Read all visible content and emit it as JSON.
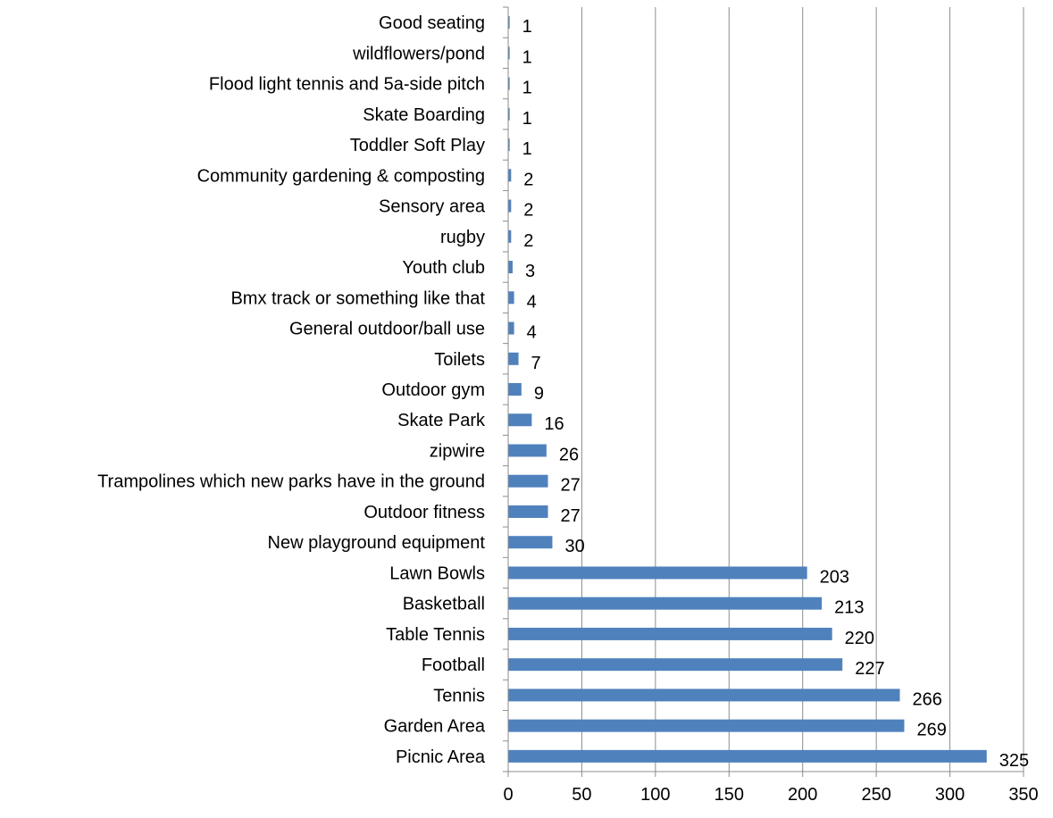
{
  "chart_data": {
    "type": "bar",
    "orientation": "horizontal",
    "title": "",
    "xlabel": "",
    "ylabel": "",
    "xlim": [
      0,
      350
    ],
    "xticks": [
      0,
      50,
      100,
      150,
      200,
      250,
      300,
      350
    ],
    "grid": "vertical",
    "legend": "none",
    "bar_color": "#4f81bd",
    "categories": [
      "Good seating",
      "wildflowers/pond",
      "Flood light tennis and 5a-side pitch",
      "Skate Boarding",
      "Toddler Soft Play",
      "Community gardening & composting",
      "Sensory area",
      "rugby",
      "Youth club",
      "Bmx track or something like that",
      "General outdoor/ball use",
      "Toilets",
      "Outdoor gym",
      "Skate Park",
      "zipwire",
      "Trampolines which new parks have in the ground",
      "Outdoor fitness",
      "New playground equipment",
      "Lawn Bowls",
      "Basketball",
      "Table Tennis",
      "Football",
      "Tennis",
      "Garden Area",
      "Picnic Area"
    ],
    "values": [
      1,
      1,
      1,
      1,
      1,
      2,
      2,
      2,
      3,
      4,
      4,
      7,
      9,
      16,
      26,
      27,
      27,
      30,
      203,
      213,
      220,
      227,
      266,
      269,
      325
    ]
  }
}
